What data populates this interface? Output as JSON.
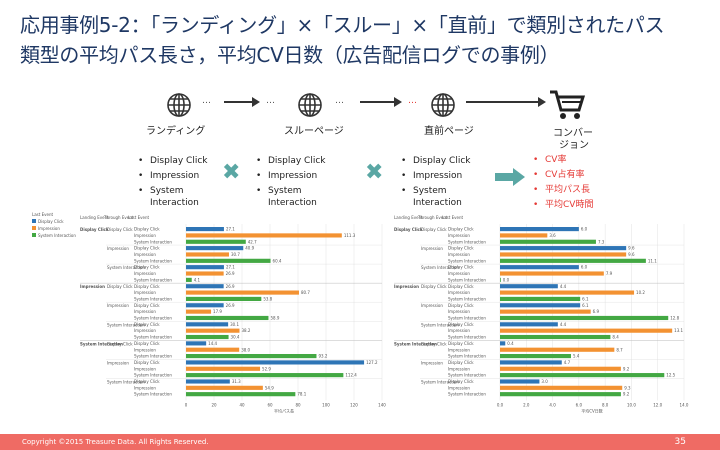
{
  "slide": {
    "title_line1": "応用事例5-2：「ランディング」×「スルー」×「直前」で類別されたパス",
    "title_line2": "類型の平均パス長さ，平均CV日数（広告配信ログでの事例）"
  },
  "flow": {
    "dots": "…",
    "nodes": [
      {
        "label": "ランディング"
      },
      {
        "label": "スルーページ"
      },
      {
        "label": "直前ページ"
      }
    ],
    "conversion_label_1": "コンバー",
    "conversion_label_2": "ジョン",
    "events": [
      "Display Click",
      "Impression",
      "System",
      "Interaction"
    ],
    "metrics": [
      "CV率",
      "CV占有率",
      "平均パス長",
      "平均CV時間"
    ]
  },
  "chart_common": {
    "legend_title": "Last Event",
    "legend": [
      {
        "name": "Display Click",
        "color": "#2e75b6"
      },
      {
        "name": "Impression",
        "color": "#f39232"
      },
      {
        "name": "System Interaction",
        "color": "#43a843"
      }
    ],
    "col_headers": [
      "Landing Event",
      "Through Event",
      "Last Event"
    ],
    "groups": [
      {
        "landing": "Display Click",
        "through": [
          "Display Click",
          "Impression",
          "System Interaction"
        ]
      },
      {
        "landing": "Impression",
        "through": [
          "Display Click",
          "Impression",
          "System Interaction"
        ]
      },
      {
        "landing": "System Interaction",
        "through": [
          "Display Click",
          "Impression",
          "System Interaction"
        ]
      }
    ],
    "last_events": [
      "Display Click",
      "Impression",
      "System Interaction"
    ]
  },
  "chart_data": [
    {
      "type": "bar",
      "orientation": "horizontal",
      "xlabel": "平均パス長",
      "xlim": [
        0,
        140
      ],
      "xticks": [
        "0",
        "20",
        "40",
        "60",
        "80",
        "100",
        "120",
        "140"
      ],
      "values": [
        27.1,
        111.3,
        42.7,
        40.9,
        30.7,
        60.4,
        27.1,
        26.9,
        4.1,
        26.9,
        80.7,
        53.8,
        26.9,
        17.9,
        58.9,
        30.1,
        38.2,
        30.4,
        14.4,
        38.0,
        93.2,
        127.2,
        52.9,
        112.4,
        31.3,
        54.9,
        78.1
      ]
    },
    {
      "type": "bar",
      "orientation": "horizontal",
      "xlabel": "平均CV日数",
      "xlim": [
        0,
        14
      ],
      "xticks": [
        "0.0",
        "2.0",
        "4.0",
        "6.0",
        "8.0",
        "10.0",
        "12.0",
        "14.0"
      ],
      "values": [
        6.0,
        3.6,
        7.3,
        9.6,
        9.6,
        11.1,
        6.0,
        7.9,
        0.0,
        4.4,
        10.2,
        6.1,
        6.1,
        6.9,
        12.8,
        4.4,
        13.1,
        8.4,
        0.4,
        8.7,
        5.4,
        4.7,
        9.2,
        12.5,
        3.0,
        9.3,
        9.2
      ]
    }
  ],
  "footer": {
    "copyright": "Copyright ©2015 Treasure Data.  All Rights Reserved.",
    "page_number": "35"
  }
}
